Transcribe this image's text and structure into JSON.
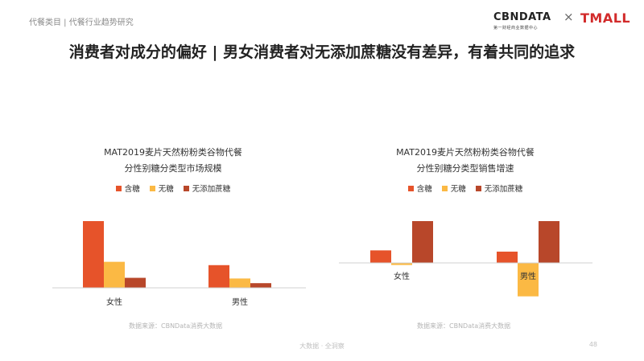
{
  "header": {
    "breadcrumb": "代餐类目 | 代餐行业趋势研究",
    "logo_cbn": "CBNDATA",
    "logo_cbn_sub": "第一财经商业数据中心",
    "logo_x": "×",
    "logo_tmall": "TMALL"
  },
  "title": "消费者对成分的偏好 | 男女消费者对无添加蔗糖没有差异，有着共同的追求",
  "colors": {
    "sugar": "#e6532a",
    "nosugar": "#fbb944",
    "nocane": "#b8472a",
    "axis": "#d0d0d0"
  },
  "legend": [
    "含糖",
    "无糖",
    "无添加蔗糖"
  ],
  "chart_data": [
    {
      "type": "bar",
      "title_line1": "MAT2019麦片天然粉粉类谷物代餐",
      "title_line2": "分性别糖分类型市场规模",
      "categories": [
        "女性",
        "男性"
      ],
      "series": [
        {
          "name": "含糖",
          "values": [
            100,
            34
          ]
        },
        {
          "name": "无糖",
          "values": [
            39,
            14
          ]
        },
        {
          "name": "无添加蔗糖",
          "values": [
            15,
            7
          ]
        }
      ],
      "ylim": [
        0,
        100
      ]
    },
    {
      "type": "bar",
      "title_line1": "MAT2019麦片天然粉粉类谷物代餐",
      "title_line2": "分性别糖分类型销售增速",
      "categories": [
        "女性",
        "男性"
      ],
      "series": [
        {
          "name": "含糖",
          "values": [
            30,
            27
          ]
        },
        {
          "name": "无糖",
          "values": [
            -5,
            -80
          ]
        },
        {
          "name": "无添加蔗糖",
          "values": [
            100,
            100
          ]
        }
      ],
      "ylim": [
        -80,
        100
      ]
    }
  ],
  "source_left": "数据来源：CBNData消费大数据",
  "source_right": "数据来源：CBNData消费大数据",
  "footer": "大数据 · 全洞察",
  "page_number": "48"
}
